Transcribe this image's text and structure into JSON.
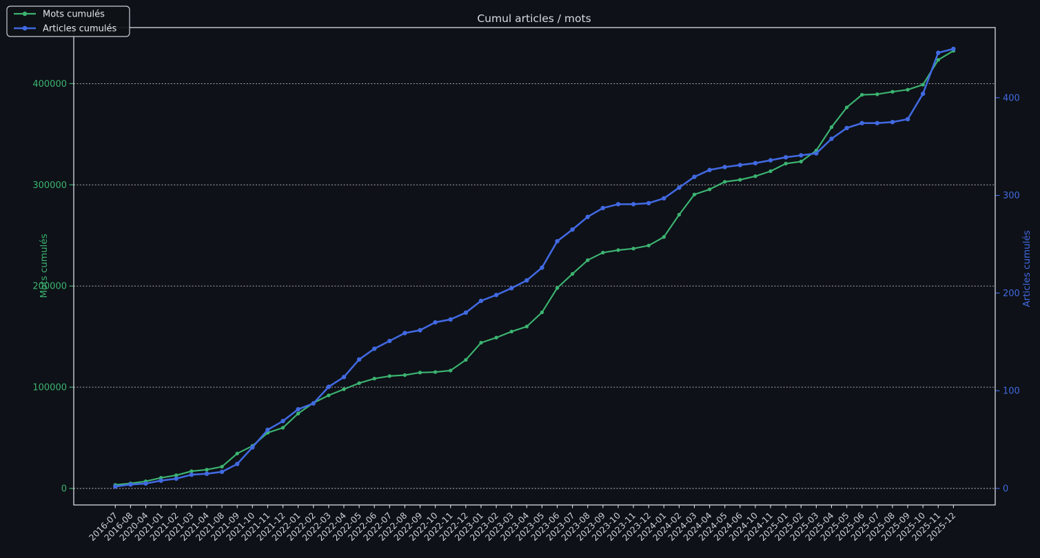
{
  "title": "Cumul articles / mots",
  "colors": {
    "background": "#0e1117",
    "frame": "#d9dde3",
    "grid": "#ffffff",
    "title_text": "#d8dce2",
    "x_tick_text": "#ccd1d8",
    "green": "#3cb371",
    "blue": "#4169e1",
    "legend_border": "#c9ced6",
    "legend_fill": "#0e1117",
    "legend_text": "#e4e8ee"
  },
  "legend": {
    "entries": [
      {
        "label": "Mots cumulés",
        "color_key": "green"
      },
      {
        "label": "Articles cumulés",
        "color_key": "blue"
      }
    ]
  },
  "chart_data": {
    "type": "line",
    "title": "Cumul articles / mots",
    "grid": "horizontal dashed",
    "legend_position": "upper left",
    "categories": [
      "2016-07",
      "2016-08",
      "2020-04",
      "2021-01",
      "2021-02",
      "2021-03",
      "2021-04",
      "2021-08",
      "2021-09",
      "2021-10",
      "2021-11",
      "2021-12",
      "2022-01",
      "2022-02",
      "2022-03",
      "2022-04",
      "2022-05",
      "2022-06",
      "2022-07",
      "2022-08",
      "2022-09",
      "2022-10",
      "2022-11",
      "2022-12",
      "2023-01",
      "2023-02",
      "2023-03",
      "2023-04",
      "2023-05",
      "2023-06",
      "2023-07",
      "2023-08",
      "2023-09",
      "2023-10",
      "2023-11",
      "2023-12",
      "2024-01",
      "2024-02",
      "2024-03",
      "2024-04",
      "2024-05",
      "2024-06",
      "2024-10",
      "2024-11",
      "2025-01",
      "2025-02",
      "2025-03",
      "2025-04",
      "2025-05",
      "2025-06",
      "2025-07",
      "2025-08",
      "2025-09",
      "2025-10",
      "2025-11",
      "2025-12"
    ],
    "series": [
      {
        "name": "Mots cumulés",
        "axis": "left",
        "color_key": "green",
        "values": [
          3500,
          5000,
          7000,
          10500,
          13000,
          17000,
          18500,
          21500,
          34500,
          42000,
          55000,
          60000,
          74000,
          84500,
          92000,
          98000,
          104000,
          108500,
          111000,
          112000,
          114500,
          115000,
          116500,
          127000,
          144000,
          149000,
          155000,
          160000,
          174000,
          198000,
          212000,
          225500,
          233000,
          235500,
          237000,
          240000,
          248500,
          270500,
          290500,
          295500,
          303000,
          305000,
          308500,
          313500,
          321000,
          323000,
          334000,
          357000,
          376500,
          389000,
          389500,
          392000,
          394000,
          399000,
          423500,
          432500
        ]
      },
      {
        "name": "Articles cumulés",
        "axis": "right",
        "color_key": "blue",
        "values": [
          2,
          4,
          5,
          8,
          10,
          14,
          15,
          17,
          25,
          42,
          60,
          69,
          81,
          87,
          104,
          114,
          132,
          143,
          151,
          159,
          162,
          170,
          173,
          180,
          192,
          198,
          205,
          213,
          226,
          253,
          265,
          278,
          287,
          291,
          291,
          292,
          297,
          308,
          319,
          326,
          329,
          331,
          333,
          336,
          339,
          341,
          343,
          358,
          369,
          374,
          374,
          375,
          378,
          404,
          446,
          450
        ]
      }
    ],
    "left_axis": {
      "label": "Mots cumulés",
      "ticks": [
        0,
        100000,
        200000,
        300000,
        400000
      ]
    },
    "right_axis": {
      "label": "Articles cumulés",
      "ticks": [
        0,
        100,
        200,
        300,
        400
      ]
    }
  }
}
